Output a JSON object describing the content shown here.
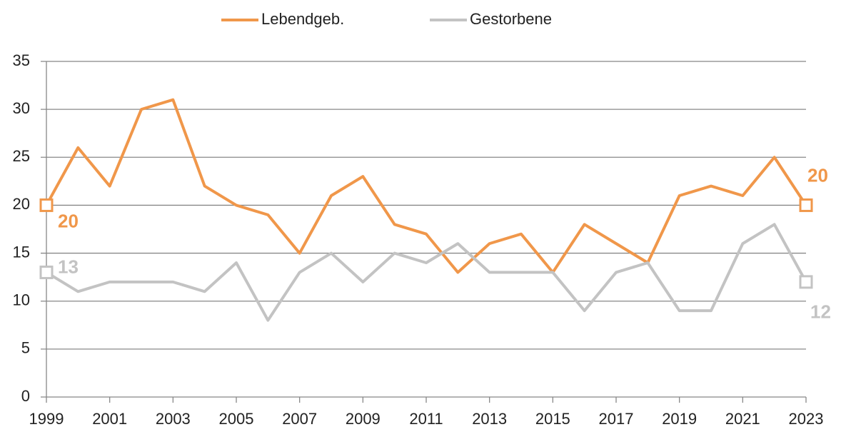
{
  "chart_data": {
    "type": "line",
    "x": [
      1999,
      2000,
      2001,
      2002,
      2003,
      2004,
      2005,
      2006,
      2007,
      2008,
      2009,
      2010,
      2011,
      2012,
      2013,
      2014,
      2015,
      2016,
      2017,
      2018,
      2019,
      2020,
      2021,
      2022,
      2023
    ],
    "series": [
      {
        "name": "Lebendgeb.",
        "color": "#f0974a",
        "values": [
          20,
          26,
          22,
          30,
          31,
          22,
          20,
          19,
          15,
          21,
          23,
          18,
          17,
          13,
          16,
          17,
          13,
          18,
          16,
          14,
          21,
          22,
          21,
          25,
          20
        ]
      },
      {
        "name": "Gestorbene",
        "color": "#c3c3c3",
        "values": [
          13,
          11,
          12,
          12,
          12,
          11,
          14,
          8,
          13,
          15,
          12,
          15,
          14,
          16,
          13,
          13,
          13,
          9,
          13,
          14,
          9,
          9,
          16,
          18,
          12
        ]
      }
    ],
    "xlim": [
      1999,
      2023
    ],
    "xticks": [
      1999,
      2001,
      2003,
      2005,
      2007,
      2009,
      2011,
      2013,
      2015,
      2017,
      2019,
      2021,
      2023
    ],
    "ylim": [
      0,
      35
    ],
    "yticks": [
      0,
      5,
      10,
      15,
      20,
      25,
      30,
      35
    ],
    "grid": true,
    "legend": "top"
  }
}
